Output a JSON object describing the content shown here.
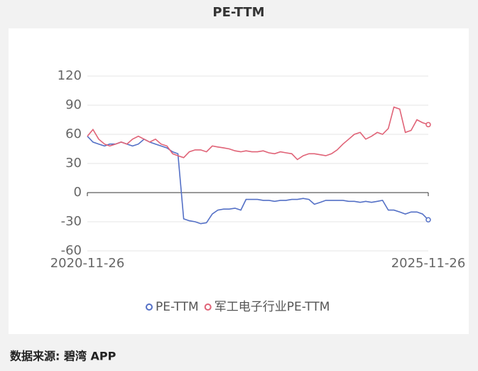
{
  "chart_data": {
    "type": "line",
    "title": "PE-TTM",
    "x": [
      "2020-11-26",
      "2020-12-26",
      "2021-01-26",
      "2021-02-26",
      "2021-03-26",
      "2021-04-26",
      "2021-05-26",
      "2021-06-26",
      "2021-07-26",
      "2021-08-26",
      "2021-09-26",
      "2021-10-26",
      "2021-11-26",
      "2021-12-26",
      "2022-01-26",
      "2022-02-26",
      "2022-03-26",
      "2022-04-26",
      "2022-05-26",
      "2022-06-26",
      "2022-07-26",
      "2022-08-26",
      "2022-09-26",
      "2022-10-26",
      "2022-11-26",
      "2022-12-26",
      "2023-01-26",
      "2023-02-26",
      "2023-03-26",
      "2023-04-26",
      "2023-05-26",
      "2023-06-26",
      "2023-07-26",
      "2023-08-26",
      "2023-09-26",
      "2023-10-26",
      "2023-11-26",
      "2023-12-26",
      "2024-01-26",
      "2024-02-26",
      "2024-03-26",
      "2024-04-26",
      "2024-05-26",
      "2024-06-26",
      "2024-07-26",
      "2024-08-26",
      "2024-09-26",
      "2024-10-26",
      "2024-11-26",
      "2024-12-26",
      "2025-01-26",
      "2025-02-26",
      "2025-03-26",
      "2025-04-26",
      "2025-05-26",
      "2025-06-26",
      "2025-07-26",
      "2025-08-26",
      "2025-09-26",
      "2025-10-26",
      "2025-11-26"
    ],
    "series": [
      {
        "name": "PE-TTM",
        "color": "#5470c6",
        "values": [
          58,
          52,
          50,
          48,
          50,
          50,
          52,
          50,
          48,
          50,
          55,
          52,
          50,
          48,
          46,
          42,
          40,
          -27,
          -29,
          -30,
          -32,
          -31,
          -22,
          -18,
          -17,
          -17,
          -16,
          -18,
          -7,
          -7,
          -7,
          -8,
          -8,
          -9,
          -8,
          -8,
          -7,
          -7,
          -6,
          -7,
          -12,
          -10,
          -8,
          -8,
          -8,
          -8,
          -9,
          -9,
          -10,
          -9,
          -10,
          -9,
          -8,
          -18,
          -18,
          -20,
          -22,
          -20,
          -20,
          -22,
          -28
        ]
      },
      {
        "name": "军工电子行业PE-TTM",
        "color": "#e06377",
        "values": [
          58,
          65,
          55,
          50,
          48,
          50,
          52,
          50,
          55,
          58,
          55,
          52,
          55,
          50,
          48,
          40,
          38,
          36,
          42,
          44,
          44,
          42,
          48,
          47,
          46,
          45,
          43,
          42,
          43,
          42,
          42,
          43,
          41,
          40,
          42,
          41,
          40,
          34,
          38,
          40,
          40,
          39,
          38,
          40,
          44,
          50,
          55,
          60,
          62,
          55,
          58,
          62,
          60,
          66,
          88,
          86,
          62,
          64,
          75,
          72,
          70
        ]
      }
    ],
    "xlim": [
      "2020-11-26",
      "2025-11-26"
    ],
    "xticks": [
      "2020-11-26",
      "2025-11-26"
    ],
    "ylim": [
      -60,
      120
    ],
    "yticks": [
      -60,
      -30,
      0,
      30,
      60,
      90,
      120
    ],
    "grid": true,
    "legend": "bottom",
    "source": "数据来源: 碧湾 APP"
  }
}
